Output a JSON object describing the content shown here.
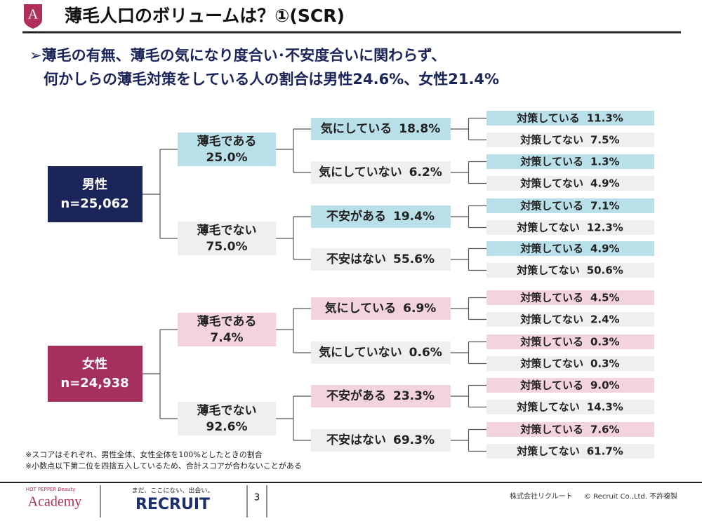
{
  "header": {
    "logo": "A",
    "title": "薄毛人口のボリュームは？①(SCR)"
  },
  "subtitle": [
    "➢薄毛の有無、薄毛の気になり度合い･不安度合いに関わらず、",
    "何かしらの薄毛対策をしている人の割合は男性24.6%、女性21.4%"
  ],
  "groups": [
    {
      "label": "男性",
      "n": "n=25,062",
      "branches": [
        {
          "label": "薄毛である",
          "value": "25.0%",
          "children": [
            {
              "label": "気にしている",
              "value": "18.8%",
              "children": [
                {
                  "label": "対策している",
                  "value": "11.3%"
                },
                {
                  "label": "対策してない",
                  "value": "7.5%"
                }
              ]
            },
            {
              "label": "気にしていない",
              "value": "6.2%",
              "children": [
                {
                  "label": "対策している",
                  "value": "1.3%"
                },
                {
                  "label": "対策してない",
                  "value": "4.9%"
                }
              ]
            }
          ]
        },
        {
          "label": "薄毛でない",
          "value": "75.0%",
          "children": [
            {
              "label": "不安がある",
              "value": "19.4%",
              "children": [
                {
                  "label": "対策している",
                  "value": "7.1%"
                },
                {
                  "label": "対策してない",
                  "value": "12.3%"
                }
              ]
            },
            {
              "label": "不安はない",
              "value": "55.6%",
              "children": [
                {
                  "label": "対策している",
                  "value": "4.9%"
                },
                {
                  "label": "対策してない",
                  "value": "50.6%"
                }
              ]
            }
          ]
        }
      ]
    },
    {
      "label": "女性",
      "n": "n=24,938",
      "branches": [
        {
          "label": "薄毛である",
          "value": "7.4%",
          "children": [
            {
              "label": "気にしている",
              "value": "6.9%",
              "children": [
                {
                  "label": "対策している",
                  "value": "4.5%"
                },
                {
                  "label": "対策してない",
                  "value": "2.4%"
                }
              ]
            },
            {
              "label": "気にしていない",
              "value": "0.6%",
              "children": [
                {
                  "label": "対策している",
                  "value": "0.3%"
                },
                {
                  "label": "対策してない",
                  "value": "0.3%"
                }
              ]
            }
          ]
        },
        {
          "label": "薄毛でない",
          "value": "92.6%",
          "children": [
            {
              "label": "不安がある",
              "value": "23.3%",
              "children": [
                {
                  "label": "対策している",
                  "value": "9.0%"
                },
                {
                  "label": "対策してない",
                  "value": "14.3%"
                }
              ]
            },
            {
              "label": "不安はない",
              "value": "69.3%",
              "children": [
                {
                  "label": "対策している",
                  "value": "7.6%"
                },
                {
                  "label": "対策してない",
                  "value": "61.7%"
                }
              ]
            }
          ]
        }
      ]
    }
  ],
  "notes": [
    "※スコアはそれぞれ、男性全体、女性全体を100%としたときの割合",
    "※小数点以下第二位を四捨五入しているため、合計スコアが合わないことがある"
  ],
  "footer": {
    "logo_small": "HOT PEPPER Beauty",
    "logo": "Academy",
    "tagline": "まだ、ここにない、出会い。",
    "brand": "RECRUIT",
    "page": "3",
    "company": "株式会社リクルート",
    "copyright": "© Recruit Co.,Ltd. 不許複製"
  }
}
